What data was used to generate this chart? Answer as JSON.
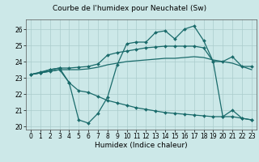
{
  "title": "Courbe de l'humidex pour Neuchatel (Sw)",
  "xlabel": "Humidex (Indice chaleur)",
  "xlim": [
    -0.5,
    23.5
  ],
  "ylim": [
    19.8,
    26.6
  ],
  "yticks": [
    20,
    21,
    22,
    23,
    24,
    25,
    26
  ],
  "xticks": [
    0,
    1,
    2,
    3,
    4,
    5,
    6,
    7,
    8,
    9,
    10,
    11,
    12,
    13,
    14,
    15,
    16,
    17,
    18,
    19,
    20,
    21,
    22,
    23
  ],
  "bg_color": "#cce8e8",
  "grid_color": "#aacccc",
  "line_color": "#1a6b6b",
  "line1_y": [
    23.2,
    23.3,
    23.5,
    23.6,
    22.7,
    20.4,
    20.2,
    20.8,
    21.8,
    23.8,
    25.1,
    25.2,
    25.2,
    25.8,
    25.9,
    25.4,
    26.0,
    26.2,
    25.3,
    24.0,
    20.6,
    21.0,
    20.5,
    20.4
  ],
  "line2_y": [
    23.2,
    23.35,
    23.5,
    23.6,
    23.6,
    23.65,
    23.7,
    23.85,
    24.4,
    24.55,
    24.65,
    24.75,
    24.85,
    24.9,
    24.95,
    24.95,
    24.95,
    24.95,
    24.85,
    24.0,
    24.0,
    24.3,
    23.7,
    23.7
  ],
  "line3_y": [
    23.2,
    23.3,
    23.4,
    23.5,
    23.5,
    23.5,
    23.55,
    23.65,
    23.8,
    23.9,
    24.0,
    24.05,
    24.1,
    24.15,
    24.2,
    24.2,
    24.25,
    24.3,
    24.25,
    24.1,
    24.0,
    23.9,
    23.7,
    23.5
  ],
  "line4_y": [
    23.2,
    23.3,
    23.4,
    23.5,
    22.7,
    22.2,
    22.1,
    21.85,
    21.6,
    21.45,
    21.3,
    21.15,
    21.05,
    20.95,
    20.85,
    20.8,
    20.75,
    20.7,
    20.65,
    20.6,
    20.6,
    20.6,
    20.5,
    20.4
  ],
  "title_fontsize": 6.5,
  "axis_fontsize": 6.5,
  "tick_fontsize": 5.5
}
